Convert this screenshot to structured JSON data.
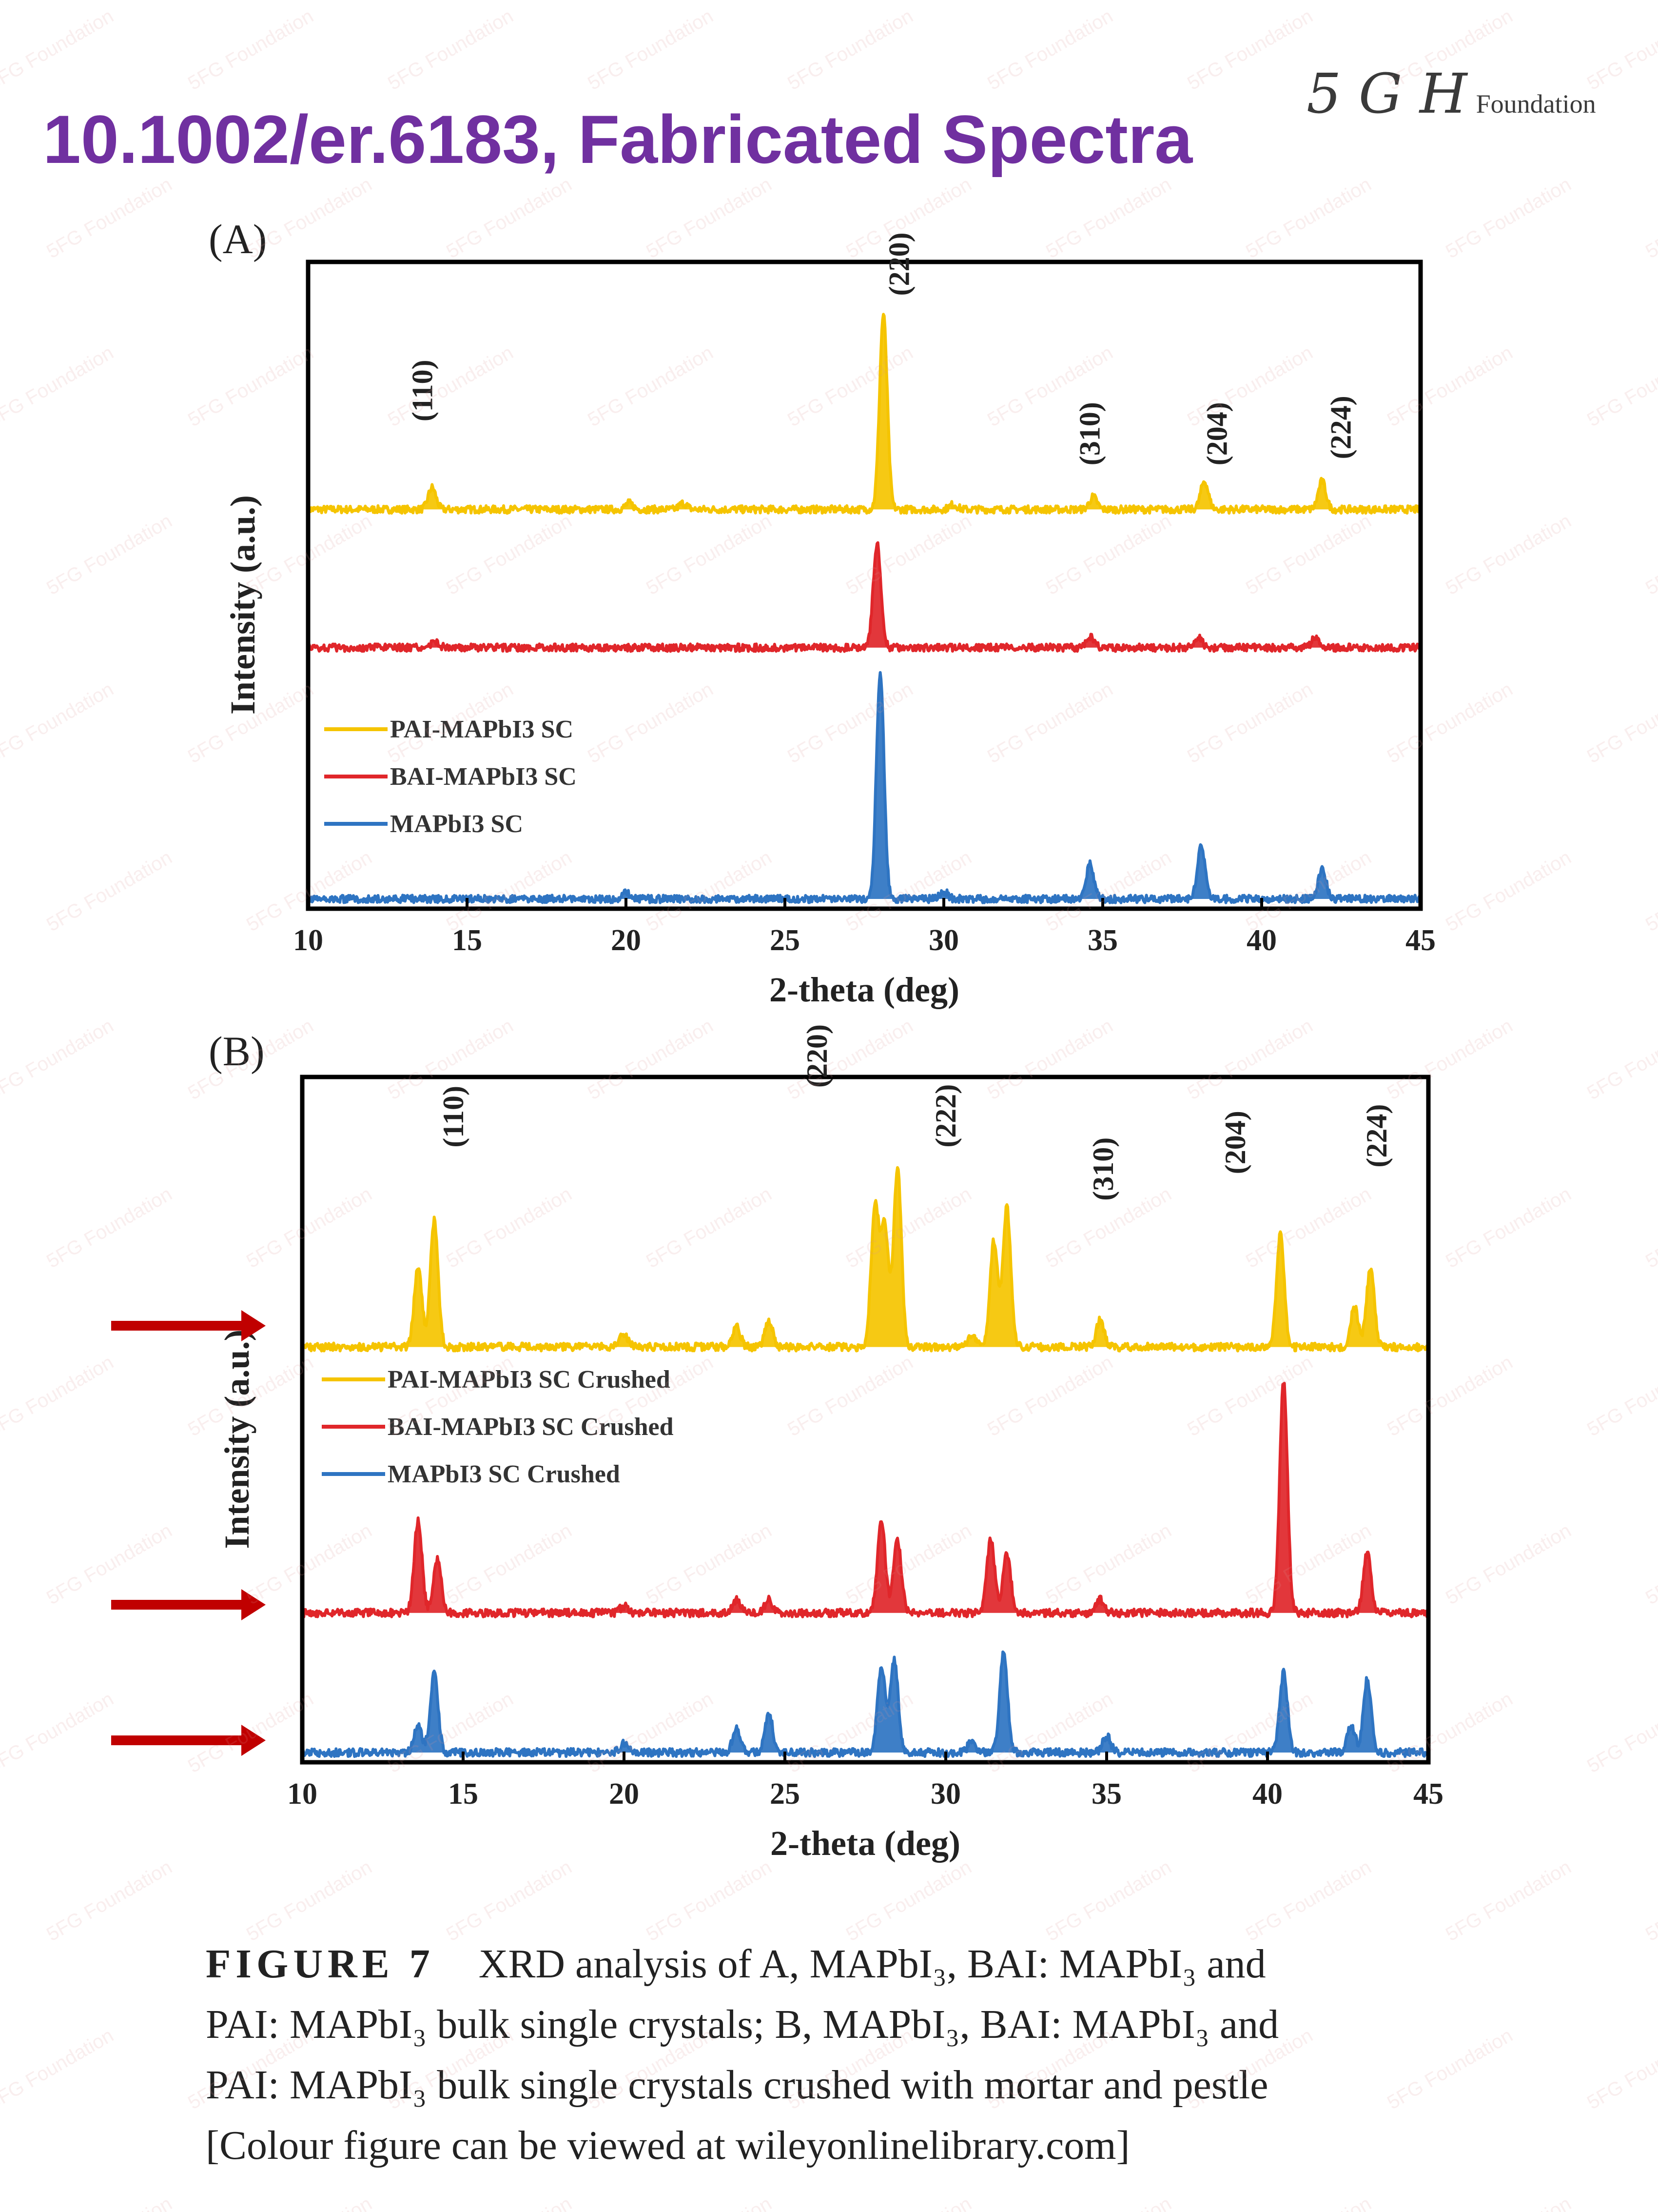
{
  "header": {
    "title": "10.1002/er.6183, Fabricated Spectra",
    "logo_mark": "5 G H",
    "logo_word": "Foundation"
  },
  "watermark_text": "5FG Foundation",
  "colors": {
    "title": "#7030a0",
    "pai": "#f5c400",
    "bai": "#e0262a",
    "mapbi": "#2e74c2",
    "arrow": "#c00000"
  },
  "figure_caption": {
    "figure_number": "FIGURE 7",
    "line1": "XRD analysis of A, MAPbI₃, BAI: MAPbI₃ and",
    "line2": "PAI: MAPbI₃ bulk single crystals; B, MAPbI₃, BAI: MAPbI₃ and",
    "line3": "PAI: MAPbI₃ bulk single crystals crushed with mortar and pestle",
    "line4": "[Colour figure can be viewed at wileyonlinelibrary.com]"
  },
  "annotation_arrows": {
    "panel": "B",
    "count": 3,
    "marks_series": [
      "PAI-MAPbI3 SC Crushed",
      "BAI-MAPbI3 SC Crushed",
      "MAPbI3 SC Crushed"
    ]
  },
  "chart_data": [
    {
      "panel_label": "(A)",
      "type": "line",
      "xlabel": "2-theta (deg)",
      "ylabel": "Intensity (a.u.)",
      "xlim": [
        10,
        45
      ],
      "x_ticks": [
        10,
        15,
        20,
        25,
        30,
        35,
        40,
        45
      ],
      "grid": false,
      "legend_position": "left-lower",
      "series": [
        {
          "name": "PAI-MAPbI3 SC",
          "color": "#f5c400",
          "offset": 0.62,
          "peaks": [
            {
              "x": 13.9,
              "h": 0.035
            },
            {
              "x": 20.1,
              "h": 0.01
            },
            {
              "x": 21.8,
              "h": 0.01
            },
            {
              "x": 28.1,
              "h": 0.31
            },
            {
              "x": 30.3,
              "h": 0.008
            },
            {
              "x": 34.7,
              "h": 0.02
            },
            {
              "x": 38.2,
              "h": 0.045
            },
            {
              "x": 41.9,
              "h": 0.045
            }
          ]
        },
        {
          "name": "BAI-MAPbI3 SC",
          "color": "#e0262a",
          "offset": 0.4,
          "peaks": [
            {
              "x": 14.0,
              "h": 0.01
            },
            {
              "x": 27.9,
              "h": 0.165
            },
            {
              "x": 34.6,
              "h": 0.018
            },
            {
              "x": 38.0,
              "h": 0.018
            },
            {
              "x": 41.7,
              "h": 0.016
            }
          ]
        },
        {
          "name": "MAPbI3 SC",
          "color": "#2e74c2",
          "offset": 0.0,
          "peaks": [
            {
              "x": 20.0,
              "h": 0.01
            },
            {
              "x": 28.0,
              "h": 0.36
            },
            {
              "x": 30.0,
              "h": 0.012
            },
            {
              "x": 34.6,
              "h": 0.055
            },
            {
              "x": 38.1,
              "h": 0.085
            },
            {
              "x": 41.9,
              "h": 0.05
            }
          ]
        }
      ],
      "peak_labels": [
        {
          "text": "(110)",
          "x": 13.9,
          "level": 0.76
        },
        {
          "text": "(220)",
          "x": 28.9,
          "level": 0.96
        },
        {
          "text": "(310)",
          "x": 34.9,
          "level": 0.69
        },
        {
          "text": "(204)",
          "x": 38.9,
          "level": 0.69
        },
        {
          "text": "(224)",
          "x": 42.8,
          "level": 0.7
        }
      ]
    },
    {
      "panel_label": "(B)",
      "type": "line",
      "xlabel": "2-theta (deg)",
      "ylabel": "Intensity (a.u.)",
      "xlim": [
        10,
        45
      ],
      "x_ticks": [
        10,
        15,
        20,
        25,
        30,
        35,
        40,
        45
      ],
      "grid": false,
      "legend_position": "left-middle",
      "series": [
        {
          "name": "PAI-MAPbI3 SC Crushed",
          "color": "#f5c400",
          "offset": 0.61,
          "peaks": [
            {
              "x": 13.6,
              "h": 0.12
            },
            {
              "x": 14.1,
              "h": 0.19
            },
            {
              "x": 20.0,
              "h": 0.02
            },
            {
              "x": 23.5,
              "h": 0.03
            },
            {
              "x": 24.5,
              "h": 0.04
            },
            {
              "x": 27.8,
              "h": 0.21
            },
            {
              "x": 28.1,
              "h": 0.18
            },
            {
              "x": 28.5,
              "h": 0.27
            },
            {
              "x": 30.8,
              "h": 0.02
            },
            {
              "x": 31.5,
              "h": 0.16
            },
            {
              "x": 31.9,
              "h": 0.21
            },
            {
              "x": 34.8,
              "h": 0.04
            },
            {
              "x": 40.4,
              "h": 0.17
            },
            {
              "x": 42.7,
              "h": 0.06
            },
            {
              "x": 43.2,
              "h": 0.12
            }
          ]
        },
        {
          "name": "BAI-MAPbI3 SC Crushed",
          "color": "#e0262a",
          "offset": 0.21,
          "peaks": [
            {
              "x": 13.6,
              "h": 0.14
            },
            {
              "x": 14.2,
              "h": 0.08
            },
            {
              "x": 20.0,
              "h": 0.01
            },
            {
              "x": 23.5,
              "h": 0.02
            },
            {
              "x": 24.5,
              "h": 0.02
            },
            {
              "x": 28.0,
              "h": 0.14
            },
            {
              "x": 28.5,
              "h": 0.11
            },
            {
              "x": 31.4,
              "h": 0.11
            },
            {
              "x": 31.9,
              "h": 0.09
            },
            {
              "x": 34.8,
              "h": 0.02
            },
            {
              "x": 40.5,
              "h": 0.35
            },
            {
              "x": 43.1,
              "h": 0.09
            }
          ]
        },
        {
          "name": "MAPbI3 SC Crushed",
          "color": "#2e74c2",
          "offset": 0.0,
          "peaks": [
            {
              "x": 13.6,
              "h": 0.04
            },
            {
              "x": 14.1,
              "h": 0.12
            },
            {
              "x": 20.0,
              "h": 0.015
            },
            {
              "x": 23.5,
              "h": 0.035
            },
            {
              "x": 24.5,
              "h": 0.06
            },
            {
              "x": 28.0,
              "h": 0.13
            },
            {
              "x": 28.4,
              "h": 0.14
            },
            {
              "x": 30.8,
              "h": 0.015
            },
            {
              "x": 31.8,
              "h": 0.15
            },
            {
              "x": 35.0,
              "h": 0.025
            },
            {
              "x": 40.5,
              "h": 0.12
            },
            {
              "x": 42.6,
              "h": 0.04
            },
            {
              "x": 43.1,
              "h": 0.11
            }
          ]
        }
      ],
      "peak_labels": [
        {
          "text": "(110)",
          "x": 15.0,
          "level": 0.91
        },
        {
          "text": "(220)",
          "x": 26.3,
          "level": 1.0
        },
        {
          "text": "(222)",
          "x": 30.3,
          "level": 0.91
        },
        {
          "text": "(310)",
          "x": 35.2,
          "level": 0.83
        },
        {
          "text": "(204)",
          "x": 39.3,
          "level": 0.87
        },
        {
          "text": "(224)",
          "x": 43.7,
          "level": 0.88
        }
      ]
    }
  ]
}
